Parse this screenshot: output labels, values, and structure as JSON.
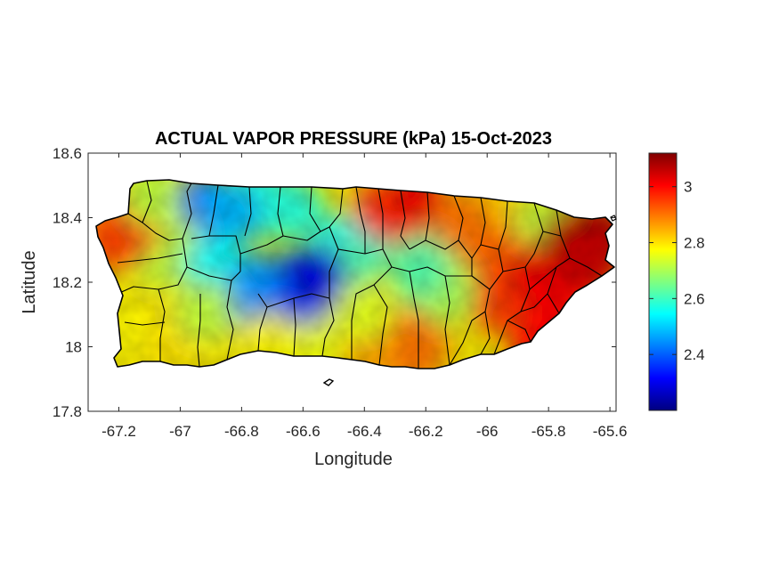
{
  "chart_data": {
    "type": "heatmap",
    "title": "ACTUAL VAPOR PRESSURE (kPa) 15-Oct-2023",
    "xlabel": "Longitude",
    "ylabel": "Latitude",
    "xlim": [
      -67.3,
      -65.58
    ],
    "ylim": [
      17.8,
      18.6
    ],
    "x_ticks": [
      -67.2,
      -67,
      -66.8,
      -66.6,
      -66.4,
      -66.2,
      -66,
      -65.8,
      -65.6
    ],
    "x_tick_labels": [
      "-67.2",
      "-67",
      "-66.8",
      "-66.6",
      "-66.4",
      "-66.2",
      "-66",
      "-65.8",
      "-65.6"
    ],
    "y_ticks": [
      17.8,
      18,
      18.2,
      18.4,
      18.6
    ],
    "y_tick_labels": [
      "17.8",
      "18",
      "18.2",
      "18.4",
      "18.6"
    ],
    "colorbar": {
      "colormap": "jet",
      "range": [
        2.2,
        3.12
      ],
      "ticks": [
        2.4,
        2.6,
        2.8,
        3
      ],
      "tick_labels": [
        "2.4",
        "2.6",
        "2.8",
        "3"
      ]
    },
    "grid": false,
    "field_samples": [
      {
        "lon": -66.92,
        "lat": 18.42,
        "value": 2.42
      },
      {
        "lon": -66.6,
        "lat": 18.19,
        "value": 2.25
      },
      {
        "lon": -66.82,
        "lat": 18.18,
        "value": 2.45
      },
      {
        "lon": -66.45,
        "lat": 18.3,
        "value": 2.55
      },
      {
        "lon": -66.75,
        "lat": 18.45,
        "value": 2.58
      },
      {
        "lon": -67.05,
        "lat": 18.3,
        "value": 2.72
      },
      {
        "lon": -67.18,
        "lat": 18.38,
        "value": 2.9
      },
      {
        "lon": -67.1,
        "lat": 18.05,
        "value": 2.8
      },
      {
        "lon": -66.6,
        "lat": 18.02,
        "value": 2.78
      },
      {
        "lon": -66.25,
        "lat": 18.42,
        "value": 3.0
      },
      {
        "lon": -66.18,
        "lat": 18.22,
        "value": 2.65
      },
      {
        "lon": -66.1,
        "lat": 18.3,
        "value": 2.72
      },
      {
        "lon": -66.25,
        "lat": 18.0,
        "value": 2.92
      },
      {
        "lon": -66.0,
        "lat": 18.35,
        "value": 2.88
      },
      {
        "lon": -65.9,
        "lat": 18.15,
        "value": 2.98
      },
      {
        "lon": -65.8,
        "lat": 18.0,
        "value": 3.0
      },
      {
        "lon": -65.65,
        "lat": 18.33,
        "value": 3.08
      },
      {
        "lon": -65.75,
        "lat": 18.22,
        "value": 3.02
      },
      {
        "lon": -65.82,
        "lat": 18.35,
        "value": 2.72
      },
      {
        "lon": -66.02,
        "lat": 18.42,
        "value": 2.82
      }
    ]
  }
}
